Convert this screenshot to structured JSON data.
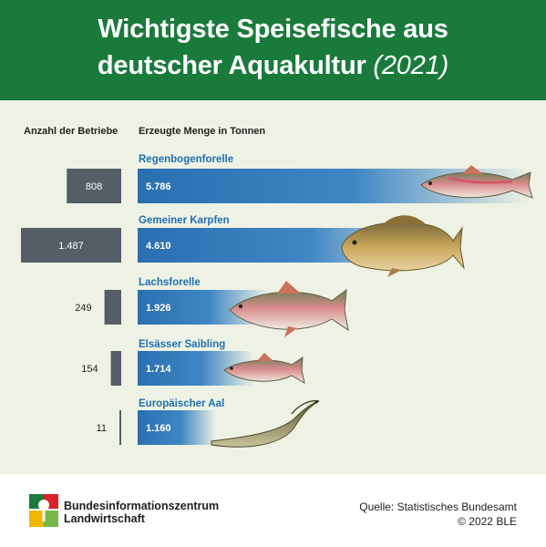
{
  "header": {
    "title_line1": "Wichtigste Speisefische aus",
    "title_line2": "deutscher Aquakultur",
    "year": "(2021)"
  },
  "columns": {
    "left": "Anzahl der Betriebe",
    "right": "Erzeugte Menge in Tonnen"
  },
  "chart_data": {
    "type": "bar",
    "title": "Wichtigste Speisefische aus deutscher Aquakultur (2021)",
    "categories": [
      "Regenbogenforelle",
      "Gemeiner Karpfen",
      "Lachsforelle",
      "Elsässer Saibling",
      "Europäischer Aal"
    ],
    "series": [
      {
        "name": "Anzahl der Betriebe",
        "values": [
          808,
          1487,
          249,
          154,
          11
        ],
        "labels": [
          "808",
          "1.487",
          "249",
          "154",
          "11"
        ]
      },
      {
        "name": "Erzeugte Menge in Tonnen",
        "values": [
          5786,
          4610,
          1926,
          1714,
          1160
        ],
        "labels": [
          "5.786",
          "4.610",
          "1.926",
          "1.714",
          "1.160"
        ]
      }
    ],
    "colors": {
      "betriebe_bar": "#555e66",
      "menge_bar": "#2a6fb0",
      "menge_bar_fade": "#eef2e4",
      "category_label": "#1f6fb2"
    }
  },
  "footer": {
    "org_line1": "Bundesinformationszentrum",
    "org_line2": "Landwirtschaft",
    "source": "Quelle: Statistisches Bundesamt",
    "copyright": "© 2022 BLE"
  },
  "colors": {
    "header_bg": "#1a7a3c",
    "page_bg": "#eef2e4"
  }
}
